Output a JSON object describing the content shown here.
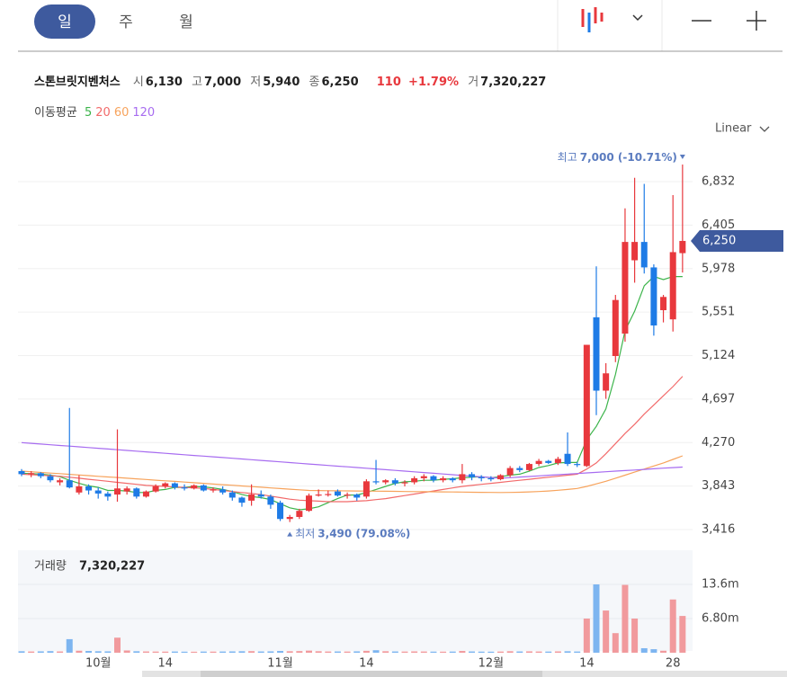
{
  "tabs": [
    "일",
    "주",
    "월"
  ],
  "header": {
    "name": "스톤브릿지벤처스",
    "fields": [
      {
        "label": "시",
        "value": "6,130"
      },
      {
        "label": "고",
        "value": "7,000"
      },
      {
        "label": "저",
        "value": "5,940"
      },
      {
        "label": "종",
        "value": "6,250"
      }
    ],
    "change": "110",
    "change_pct": "+1.79%",
    "volume_label": "거",
    "volume": "7,320,227"
  },
  "scale_label": "Linear",
  "chart_data": [
    {
      "type": "candlestick",
      "legend_title": "이동평균",
      "up_color": "#e8383d",
      "down_color": "#1e7be6",
      "categories": [
        null,
        null,
        null,
        null,
        null,
        null,
        null,
        null,
        "10월",
        null,
        null,
        null,
        null,
        null,
        null,
        "14",
        null,
        null,
        null,
        null,
        null,
        null,
        null,
        null,
        null,
        null,
        null,
        "11월",
        null,
        null,
        null,
        null,
        null,
        null,
        null,
        null,
        "14",
        null,
        null,
        null,
        null,
        null,
        null,
        null,
        null,
        null,
        null,
        null,
        null,
        "12월",
        null,
        null,
        null,
        null,
        null,
        null,
        null,
        null,
        null,
        "14",
        null,
        null,
        null,
        null,
        null,
        null,
        null,
        null,
        "28",
        null
      ],
      "open": [
        3990,
        3960,
        3970,
        3940,
        3880,
        3900,
        3780,
        3840,
        3800,
        3770,
        3760,
        3790,
        3820,
        3740,
        3790,
        3840,
        3870,
        3830,
        3820,
        3850,
        3800,
        3810,
        3780,
        3730,
        3700,
        3760,
        3740,
        3680,
        3520,
        3540,
        3600,
        3760,
        3760,
        3790,
        3750,
        3760,
        3740,
        3890,
        3880,
        3900,
        3870,
        3880,
        3920,
        3940,
        3900,
        3920,
        3900,
        3960,
        3930,
        3920,
        3910,
        3950,
        4020,
        4000,
        4060,
        4090,
        4070,
        4160,
        4060,
        4040,
        5500,
        4780,
        5120,
        5340,
        6060,
        6240,
        5990,
        5570,
        5480,
        6130
      ],
      "high": [
        4010,
        3990,
        3980,
        3960,
        3920,
        4610,
        3950,
        3860,
        3830,
        3790,
        4400,
        3840,
        3830,
        3800,
        3860,
        3880,
        3880,
        3860,
        3860,
        3860,
        3830,
        3840,
        3800,
        3740,
        3860,
        3800,
        3760,
        3700,
        3560,
        3620,
        3770,
        3810,
        3800,
        3810,
        3780,
        3770,
        3910,
        4100,
        3910,
        3920,
        3900,
        3940,
        3960,
        3950,
        3940,
        3930,
        4060,
        3980,
        3950,
        3940,
        3960,
        4040,
        4040,
        4070,
        4110,
        4100,
        4130,
        4370,
        4080,
        5230,
        6000,
        5050,
        5720,
        6570,
        6870,
        6810,
        6020,
        5720,
        6700,
        7000
      ],
      "low": [
        3940,
        3930,
        3920,
        3880,
        3850,
        3820,
        3760,
        3760,
        3720,
        3700,
        3690,
        3760,
        3720,
        3730,
        3780,
        3820,
        3810,
        3800,
        3810,
        3790,
        3780,
        3760,
        3700,
        3640,
        3650,
        3720,
        3620,
        3500,
        3490,
        3520,
        3590,
        3740,
        3740,
        3740,
        3720,
        3700,
        3720,
        3860,
        3860,
        3850,
        3840,
        3860,
        3890,
        3880,
        3880,
        3880,
        3870,
        3900,
        3890,
        3890,
        3900,
        3930,
        3980,
        3990,
        4040,
        4060,
        4050,
        4040,
        4030,
        4030,
        4540,
        4700,
        5060,
        5260,
        5840,
        5930,
        5320,
        5450,
        5360,
        5940
      ],
      "close": [
        3960,
        3970,
        3940,
        3900,
        3900,
        3830,
        3840,
        3800,
        3770,
        3740,
        3820,
        3820,
        3740,
        3790,
        3840,
        3870,
        3830,
        3820,
        3850,
        3800,
        3810,
        3780,
        3730,
        3680,
        3760,
        3740,
        3660,
        3520,
        3540,
        3600,
        3750,
        3760,
        3765,
        3750,
        3760,
        3730,
        3890,
        3880,
        3900,
        3870,
        3880,
        3920,
        3940,
        3900,
        3920,
        3900,
        3960,
        3930,
        3920,
        3910,
        3950,
        4020,
        4000,
        4060,
        4090,
        4070,
        4110,
        4060,
        4050,
        5230,
        4780,
        4950,
        5670,
        6240,
        6240,
        5990,
        5420,
        5700,
        6140,
        6250
      ],
      "series": [
        {
          "name": "5",
          "color": "#3cb44b",
          "values": [
            3970,
            3965,
            3960,
            3950,
            3935,
            3900,
            3870,
            3845,
            3830,
            3800,
            3800,
            3795,
            3780,
            3780,
            3800,
            3810,
            3830,
            3830,
            3840,
            3835,
            3825,
            3810,
            3790,
            3760,
            3740,
            3730,
            3710,
            3670,
            3630,
            3610,
            3620,
            3640,
            3680,
            3720,
            3755,
            3755,
            3780,
            3810,
            3840,
            3870,
            3885,
            3890,
            3900,
            3900,
            3910,
            3915,
            3925,
            3930,
            3935,
            3925,
            3935,
            3950,
            3960,
            3990,
            4025,
            4045,
            4070,
            4075,
            4075,
            4300,
            4430,
            4600,
            4940,
            5370,
            5560,
            5810,
            5900,
            5870,
            5900,
            5900
          ]
        },
        {
          "name": "20",
          "color": "#f26a6a",
          "values": [
            3960,
            3955,
            3950,
            3945,
            3940,
            3930,
            3920,
            3910,
            3900,
            3890,
            3880,
            3870,
            3860,
            3850,
            3845,
            3840,
            3835,
            3830,
            3825,
            3820,
            3810,
            3800,
            3790,
            3780,
            3770,
            3760,
            3745,
            3730,
            3715,
            3705,
            3700,
            3695,
            3690,
            3690,
            3690,
            3695,
            3700,
            3710,
            3720,
            3735,
            3750,
            3765,
            3780,
            3795,
            3810,
            3825,
            3840,
            3850,
            3860,
            3870,
            3880,
            3890,
            3900,
            3910,
            3920,
            3930,
            3940,
            3950,
            3960,
            4010,
            4070,
            4160,
            4260,
            4360,
            4450,
            4550,
            4640,
            4730,
            4820,
            4920
          ]
        },
        {
          "name": "60",
          "color": "#f7a35c",
          "values": [
            3990,
            3984,
            3977,
            3971,
            3965,
            3958,
            3952,
            3946,
            3939,
            3933,
            3927,
            3920,
            3914,
            3908,
            3901,
            3895,
            3889,
            3882,
            3876,
            3870,
            3863,
            3857,
            3851,
            3844,
            3838,
            3832,
            3825,
            3819,
            3813,
            3806,
            3800,
            3799,
            3798,
            3797,
            3796,
            3795,
            3794,
            3793,
            3792,
            3791,
            3790,
            3789,
            3788,
            3787,
            3786,
            3785,
            3784,
            3783,
            3782,
            3781,
            3780,
            3781,
            3783,
            3786,
            3790,
            3795,
            3802,
            3810,
            3820,
            3840,
            3865,
            3890,
            3920,
            3950,
            3980,
            4010,
            4040,
            4070,
            4105,
            4140
          ]
        },
        {
          "name": "120",
          "color": "#a76cf0",
          "values": [
            4270,
            4263,
            4256,
            4249,
            4242,
            4235,
            4228,
            4221,
            4214,
            4207,
            4200,
            4193,
            4186,
            4179,
            4172,
            4165,
            4158,
            4151,
            4144,
            4137,
            4130,
            4123,
            4116,
            4109,
            4102,
            4095,
            4088,
            4081,
            4074,
            4067,
            4060,
            4053,
            4046,
            4039,
            4032,
            4025,
            4018,
            4011,
            4004,
            3997,
            3990,
            3983,
            3976,
            3969,
            3962,
            3955,
            3948,
            3941,
            3934,
            3927,
            3920,
            3926,
            3932,
            3937,
            3943,
            3949,
            3955,
            3961,
            3966,
            3972,
            3978,
            3984,
            3990,
            3995,
            4001,
            4007,
            4013,
            4019,
            4024,
            4030
          ]
        }
      ],
      "ylim": [
        3275,
        7159
      ],
      "yticks": [
        {
          "value": 3416,
          "label": "3,416"
        },
        {
          "value": 3843,
          "label": "3,843"
        },
        {
          "value": 4270,
          "label": "4,270"
        },
        {
          "value": 4697,
          "label": "4,697"
        },
        {
          "value": 5124,
          "label": "5,124"
        },
        {
          "value": 5551,
          "label": "5,551"
        },
        {
          "value": 5978,
          "label": "5,978"
        },
        {
          "value": 6405,
          "label": "6,405"
        },
        {
          "value": 6832,
          "label": "6,832"
        }
      ],
      "current": {
        "value": 6250,
        "label": "6,250"
      },
      "annotations": {
        "high": {
          "label": "최고",
          "value": 7000,
          "text": "7,000 (-10.71%)"
        },
        "low": {
          "label": "최저",
          "value": 3490,
          "text": "3,490 (79.08%)"
        }
      }
    },
    {
      "type": "bar",
      "title": "거래량",
      "title_value": "7,320,227",
      "up_color": "#f19a9d",
      "down_color": "#7db5f0",
      "values": [
        300000,
        250000,
        280000,
        320000,
        260000,
        2700000,
        400000,
        350000,
        300000,
        280000,
        3000000,
        450000,
        300000,
        260000,
        240000,
        230000,
        250000,
        220000,
        210000,
        240000,
        230000,
        250000,
        270000,
        300000,
        320000,
        260000,
        280000,
        350000,
        300000,
        330000,
        420000,
        300000,
        250000,
        260000,
        240000,
        280000,
        380000,
        500000,
        300000,
        260000,
        240000,
        270000,
        250000,
        230000,
        220000,
        240000,
        350000,
        260000,
        230000,
        220000,
        240000,
        300000,
        260000,
        280000,
        250000,
        240000,
        270000,
        300000,
        250000,
        6800000,
        13600000,
        8400000,
        3900000,
        13500000,
        6800000,
        900000,
        700000,
        400000,
        10600000,
        7320227
      ],
      "ylim": [
        0,
        20400000
      ],
      "yticks": [
        {
          "value": 6800000,
          "label": "6.80m"
        },
        {
          "value": 13600000,
          "label": "13.6m"
        }
      ]
    }
  ]
}
